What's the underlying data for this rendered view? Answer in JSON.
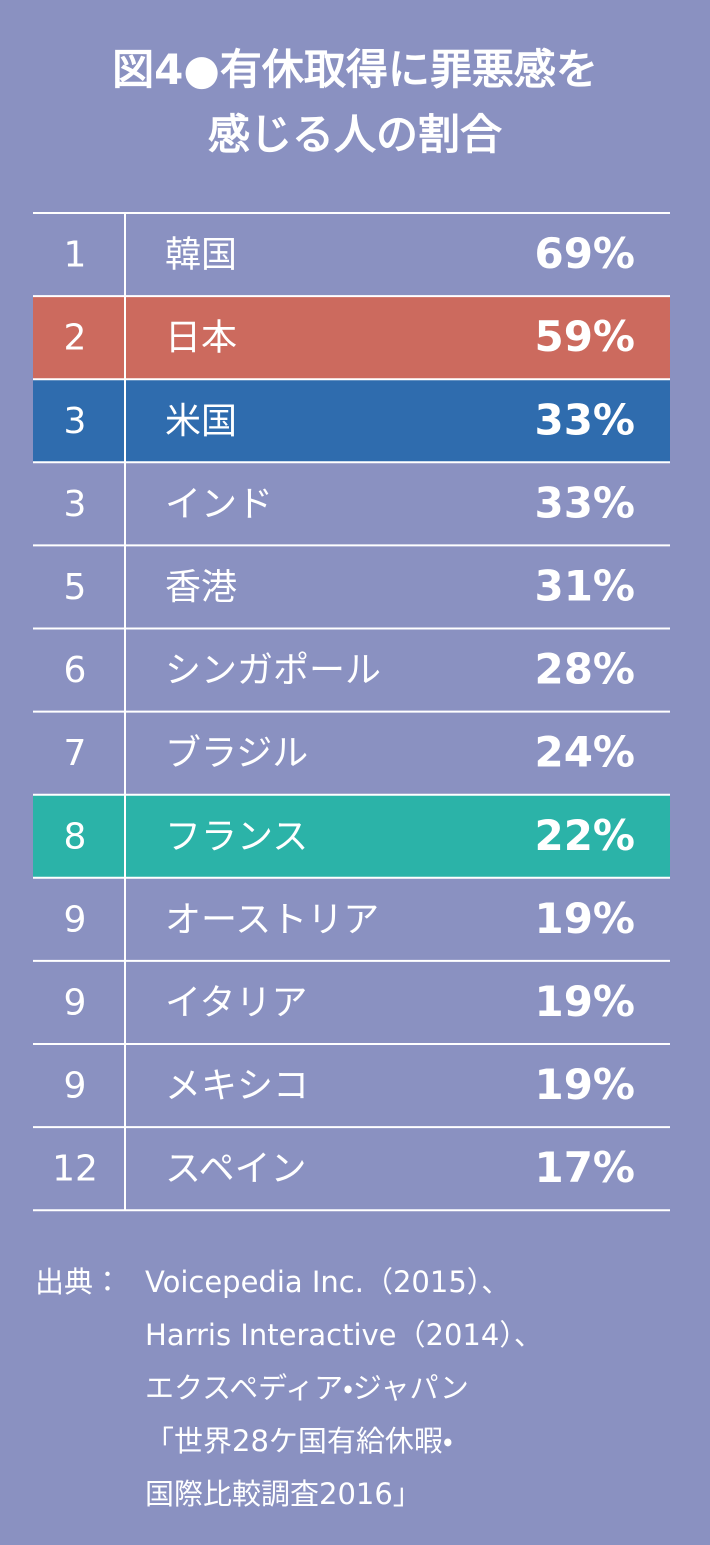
{
  "header": {
    "title": [
      "図4●有休取得に罪悪感を",
      "感じる人の割合"
    ]
  },
  "table": {
    "rows": [
      {
        "rank": "1",
        "name": "韓国",
        "value": "69%"
      },
      {
        "rank": "2",
        "name": "日本",
        "value": "59%",
        "color": "#cc6a5e"
      },
      {
        "rank": "3",
        "name": "米国",
        "value": "33%",
        "color": "#2f6cae"
      },
      {
        "rank": "3",
        "name": "インド",
        "value": "33%"
      },
      {
        "rank": "5",
        "name": "香港",
        "value": "31%"
      },
      {
        "rank": "6",
        "name": "シンガポール",
        "value": "28%"
      },
      {
        "rank": "7",
        "name": "ブラジル",
        "value": "24%"
      },
      {
        "rank": "8",
        "name": "フランス",
        "value": "22%",
        "color": "#2bb3a8"
      },
      {
        "rank": "9",
        "name": "オーストリア",
        "value": "19%"
      },
      {
        "rank": "9",
        "name": "イタリア",
        "value": "19%"
      },
      {
        "rank": "9",
        "name": "メキシコ",
        "value": "19%"
      },
      {
        "rank": "12",
        "name": "スペイン",
        "value": "17%"
      }
    ]
  },
  "source": {
    "label": "出典：",
    "lines": [
      "Voicepedia Inc.（2015）、",
      "Harris Interactive（2014）、",
      "エクスペディア・ジャパン",
      "「世界28ケ国有給休暇・",
      "国際比較調査2016」"
    ]
  }
}
